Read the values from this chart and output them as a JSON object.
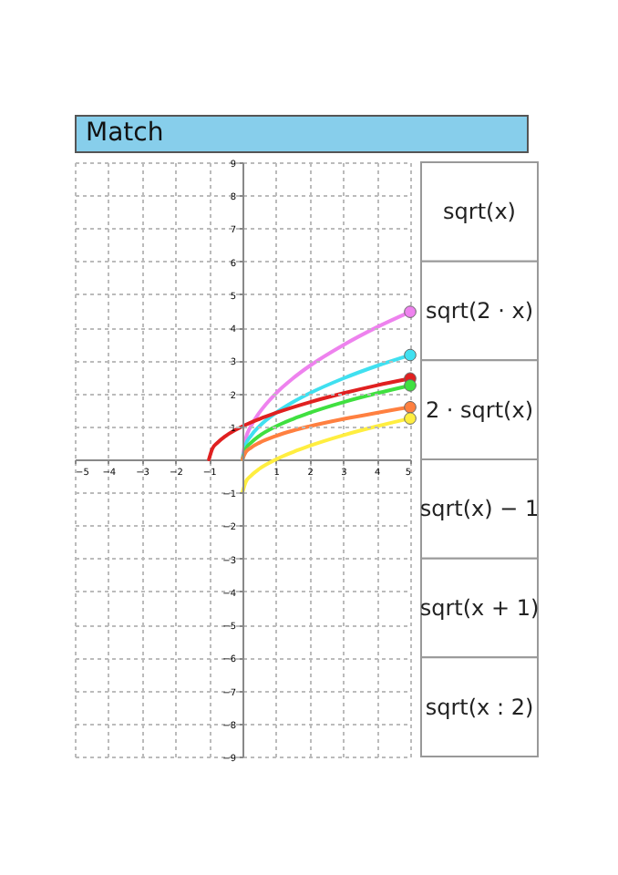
{
  "chart_data": {
    "type": "line",
    "title": "Match",
    "xlim": [
      -5,
      5
    ],
    "ylim": [
      -9,
      9
    ],
    "xticks": [
      -5,
      -4,
      -3,
      -2,
      -1,
      1,
      2,
      3,
      4,
      5
    ],
    "yticks": [
      -9,
      -8,
      -7,
      -6,
      -5,
      -4,
      -3,
      -2,
      -1,
      1,
      2,
      3,
      4,
      5,
      6,
      7,
      8,
      9
    ],
    "grid": true,
    "legend": false,
    "line_style": "solid",
    "series": [
      {
        "color": "#ee82ee",
        "x": [
          0,
          0.1,
          0.25,
          0.5,
          1,
          1.5,
          2,
          3,
          4,
          5
        ],
        "values": [
          0,
          0.63,
          1,
          1.41,
          2,
          2.45,
          2.83,
          3.46,
          4,
          4.47
        ]
      },
      {
        "color": "#40e0f0",
        "x": [
          0,
          0.1,
          0.25,
          0.5,
          1,
          1.5,
          2,
          3,
          4,
          5
        ],
        "values": [
          0,
          0.45,
          0.71,
          1,
          1.41,
          1.73,
          2,
          2.45,
          2.83,
          3.16
        ]
      },
      {
        "color": "#e02020",
        "x": [
          -1,
          -0.9,
          -0.75,
          -0.5,
          0,
          0.5,
          1,
          2,
          3,
          4,
          5
        ],
        "values": [
          0,
          0.32,
          0.5,
          0.71,
          1,
          1.22,
          1.41,
          1.73,
          2,
          2.24,
          2.45
        ]
      },
      {
        "color": "#40e040",
        "x": [
          0,
          0.1,
          0.25,
          0.5,
          1,
          1.5,
          2,
          3,
          4,
          5
        ],
        "values": [
          0,
          0.32,
          0.5,
          0.71,
          1,
          1.22,
          1.41,
          1.73,
          2,
          2.24
        ]
      },
      {
        "color": "#ff8040",
        "x": [
          0,
          0.1,
          0.25,
          0.5,
          1,
          1.5,
          2,
          3,
          4,
          5
        ],
        "values": [
          0,
          0.22,
          0.35,
          0.5,
          0.71,
          0.87,
          1,
          1.22,
          1.41,
          1.58
        ]
      },
      {
        "color": "#ffee40",
        "x": [
          0,
          0.1,
          0.25,
          0.5,
          1,
          1.5,
          2,
          3,
          4,
          5
        ],
        "values": [
          -1,
          -0.68,
          -0.5,
          -0.29,
          0,
          0.22,
          0.41,
          0.73,
          1,
          1.24
        ]
      },
      {
        "type": "scatter",
        "marker": "circle",
        "color": "#ee82ee",
        "x": [
          5
        ],
        "values": [
          4.47
        ]
      },
      {
        "type": "scatter",
        "marker": "circle",
        "color": "#40e0f0",
        "x": [
          5
        ],
        "values": [
          3.16
        ]
      },
      {
        "type": "scatter",
        "marker": "circle",
        "color": "#e02020",
        "x": [
          5
        ],
        "values": [
          2.45
        ]
      },
      {
        "type": "scatter",
        "marker": "circle",
        "color": "#40e040",
        "x": [
          5
        ],
        "values": [
          2.24
        ]
      },
      {
        "type": "scatter",
        "marker": "circle",
        "color": "#ff8040",
        "x": [
          5
        ],
        "values": [
          1.58
        ]
      },
      {
        "type": "scatter",
        "marker": "circle",
        "color": "#ffee40",
        "x": [
          5
        ],
        "values": [
          1.24
        ]
      }
    ],
    "annotations": [
      "sqrt(x)",
      "sqrt(2 · x)",
      "2 · sqrt(x)",
      "sqrt(x) − 1",
      "sqrt(x + 1)",
      "sqrt(x : 2)"
    ]
  }
}
